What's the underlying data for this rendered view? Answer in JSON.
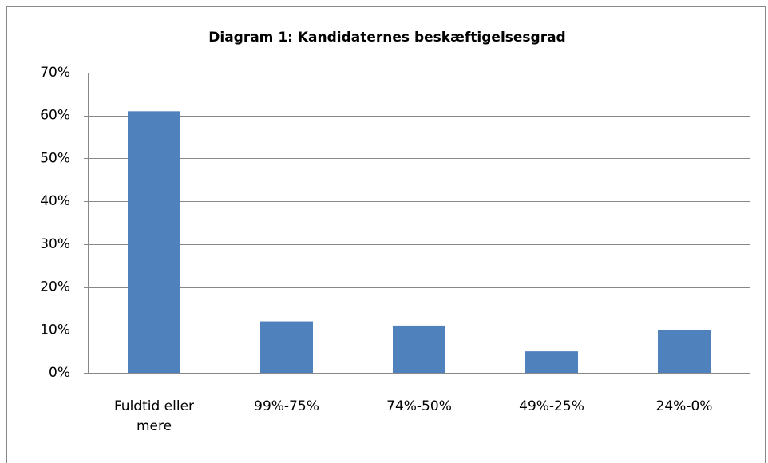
{
  "chart_data": {
    "type": "bar",
    "title": "Diagram 1: Kandidaternes beskæftigelsesgrad",
    "categories": [
      "Fuldtid eller mere",
      "99%-75%",
      "74%-50%",
      "49%-25%",
      "24%-0%"
    ],
    "values": [
      61,
      12,
      11,
      5,
      10
    ],
    "color": "#4f81bd",
    "ylim": [
      0,
      70
    ],
    "yticks": [
      {
        "value": 0,
        "label": "0%"
      },
      {
        "value": 10,
        "label": "10%"
      },
      {
        "value": 20,
        "label": "20%"
      },
      {
        "value": 30,
        "label": "30%"
      },
      {
        "value": 40,
        "label": "40%"
      },
      {
        "value": 50,
        "label": "50%"
      },
      {
        "value": 60,
        "label": "60%"
      },
      {
        "value": 70,
        "label": "70%"
      }
    ],
    "grid": true
  }
}
